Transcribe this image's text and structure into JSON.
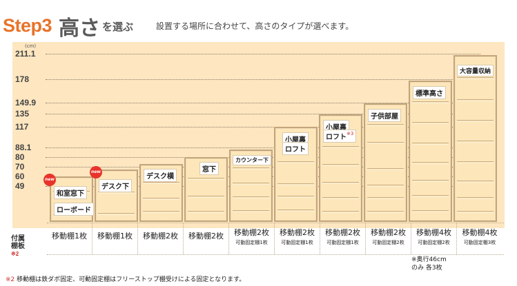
{
  "header": {
    "step": "Step3",
    "title_main": "高さ",
    "title_tail": "を選ぶ",
    "subtitle": "設置する場所に合わせて、高さのタイプが選べます。"
  },
  "axis": {
    "unit": "(cm)",
    "ticks": [
      "211.1",
      "178",
      "149.9",
      "135",
      "117",
      "88.1",
      "80",
      "70",
      "60",
      "49"
    ]
  },
  "colors": {
    "accent": "#e8732a",
    "panel": "#fde6c0",
    "shelf_border": "#c2a57c",
    "new_badge": "#e8332a",
    "note": "#d03030"
  },
  "products": [
    {
      "label": "和室窓下",
      "label2": "ローボード",
      "new_badge": "new",
      "accessory": "移動棚1枚",
      "accessory_sub": ""
    },
    {
      "label": "デスク下",
      "new_badge": "new",
      "accessory": "移動棚1枚",
      "accessory_sub": ""
    },
    {
      "label": "デスク横",
      "accessory": "移動棚2枚",
      "accessory_sub": ""
    },
    {
      "label": "窓下",
      "accessory": "移動棚2枚",
      "accessory_sub": ""
    },
    {
      "label": "カウンター下",
      "accessory": "移動棚2枚",
      "accessory_sub": "可動固定棚1枚"
    },
    {
      "label": "小屋裏",
      "label2": "ロフト",
      "accessory": "移動棚2枚",
      "accessory_sub": "可動固定棚1枚"
    },
    {
      "label": "小屋裏",
      "label2": "ロフト",
      "note_mark": "※3",
      "accessory": "移動棚2枚",
      "accessory_sub": "可動固定棚1枚"
    },
    {
      "label": "子供部屋",
      "accessory": "移動棚2枚",
      "accessory_sub": "可動固定棚2枚"
    },
    {
      "label": "標準高さ",
      "accessory": "移動棚4枚",
      "accessory_sub": "可動固定棚2枚"
    },
    {
      "label": "大容量収納",
      "accessory": "移動棚4枚",
      "accessory_sub": "可動固定棚3枚"
    }
  ],
  "accessory_header": {
    "text": "付属棚板",
    "note": "※2"
  },
  "extra_note": {
    "line1": "※奥行46cm",
    "line2": "のみ 各3枚"
  },
  "footnote": {
    "mark": "※2",
    "text": " 移動棚は鉄ダボ固定、可動固定棚はフリーストップ棚受けによる固定となります。"
  }
}
